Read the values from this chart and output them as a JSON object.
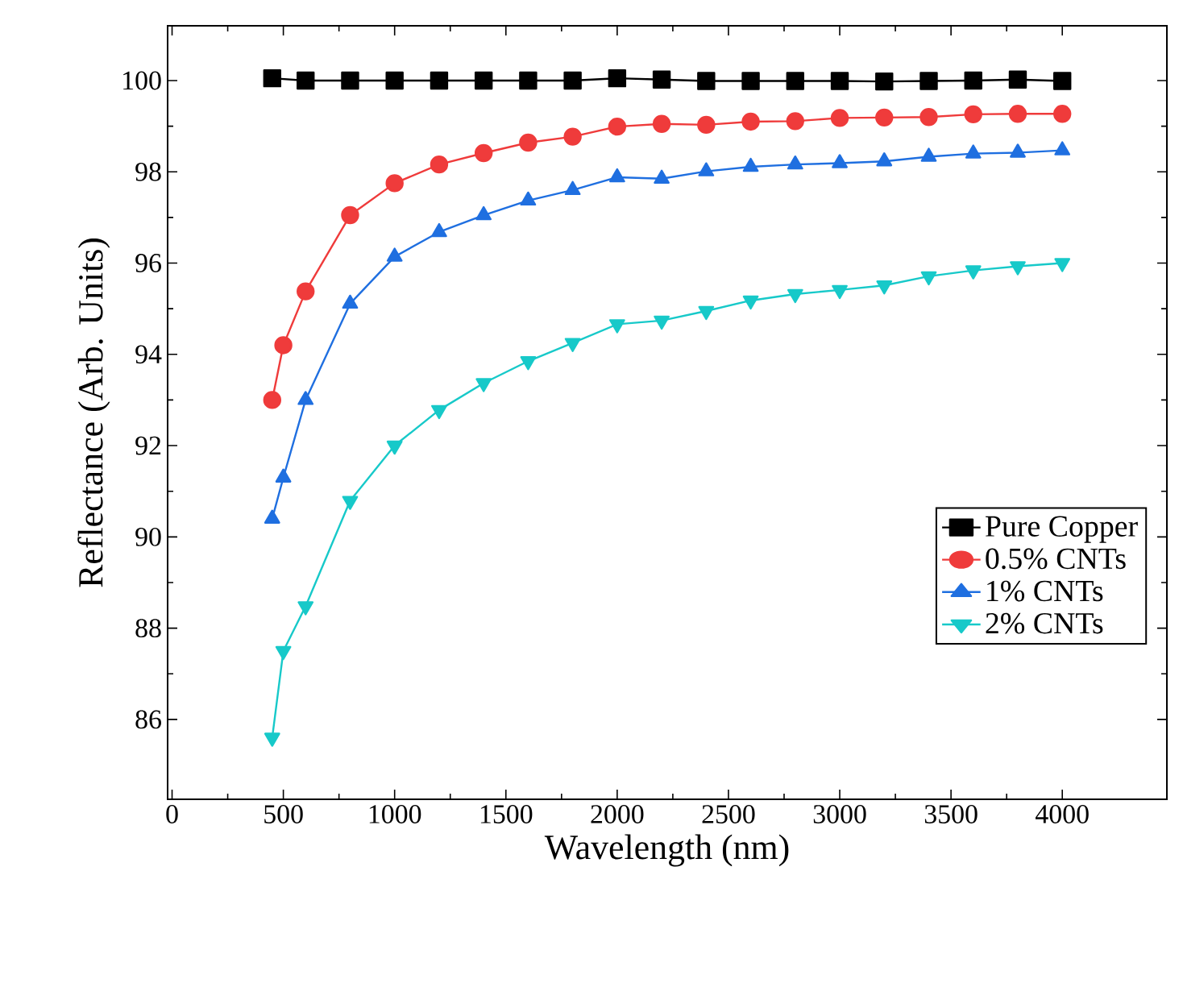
{
  "chart_data": {
    "type": "line",
    "xlabel": "Wavelength (nm)",
    "ylabel": "Reflectance (Arb. Units)",
    "xlim": [
      -20,
      4470
    ],
    "ylim": [
      84.25,
      101.2
    ],
    "xticks": [
      0,
      500,
      1000,
      1500,
      2000,
      2500,
      3000,
      3500,
      4000
    ],
    "yticks": [
      86,
      88,
      90,
      92,
      94,
      96,
      98,
      100
    ],
    "grid": false,
    "legend": "bottom right",
    "line_style": "solid",
    "series": [
      {
        "name": "Pure Copper",
        "color": "#000000",
        "marker": "square",
        "x": [
          450,
          600,
          800,
          1000,
          1200,
          1400,
          1600,
          1800,
          2000,
          2200,
          2400,
          2600,
          2800,
          3000,
          3200,
          3400,
          3600,
          3800,
          4000
        ],
        "values": [
          100.05,
          100,
          100,
          100,
          100,
          100,
          100,
          100,
          100.05,
          100.02,
          99.99,
          99.99,
          99.99,
          99.99,
          99.98,
          99.99,
          100,
          100.02,
          99.99
        ]
      },
      {
        "name": "0.5% CNTs",
        "color": "#ef3b3b",
        "marker": "circle",
        "x": [
          450,
          500,
          600,
          800,
          1000,
          1200,
          1400,
          1600,
          1800,
          2000,
          2200,
          2400,
          2600,
          2800,
          3000,
          3200,
          3400,
          3600,
          3800,
          4000
        ],
        "values": [
          93.0,
          94.2,
          95.38,
          97.05,
          97.75,
          98.16,
          98.41,
          98.64,
          98.77,
          98.99,
          99.05,
          99.03,
          99.1,
          99.11,
          99.18,
          99.19,
          99.2,
          99.26,
          99.27,
          99.27
        ]
      },
      {
        "name": "1% CNTs",
        "color": "#1f6fe0",
        "marker": "triangle",
        "x": [
          450,
          500,
          600,
          800,
          1000,
          1200,
          1400,
          1600,
          1800,
          2000,
          2200,
          2400,
          2600,
          2800,
          3000,
          3200,
          3400,
          3600,
          3800,
          4000
        ],
        "values": [
          90.4,
          91.3,
          93.0,
          95.11,
          96.14,
          96.68,
          97.05,
          97.37,
          97.6,
          97.88,
          97.85,
          98.01,
          98.11,
          98.16,
          98.19,
          98.23,
          98.33,
          98.4,
          98.42,
          98.47
        ]
      },
      {
        "name": "2% CNTs",
        "color": "#17c9c9",
        "marker": "triangle down",
        "x": [
          450,
          500,
          600,
          800,
          1000,
          1200,
          1400,
          1600,
          1800,
          2000,
          2200,
          2400,
          2600,
          2800,
          3000,
          3200,
          3400,
          3600,
          3800,
          4000
        ],
        "values": [
          85.6,
          87.5,
          88.48,
          90.79,
          92.0,
          92.78,
          93.37,
          93.85,
          94.25,
          94.66,
          94.74,
          94.95,
          95.18,
          95.32,
          95.41,
          95.51,
          95.71,
          95.84,
          95.93,
          96.0
        ]
      }
    ]
  }
}
